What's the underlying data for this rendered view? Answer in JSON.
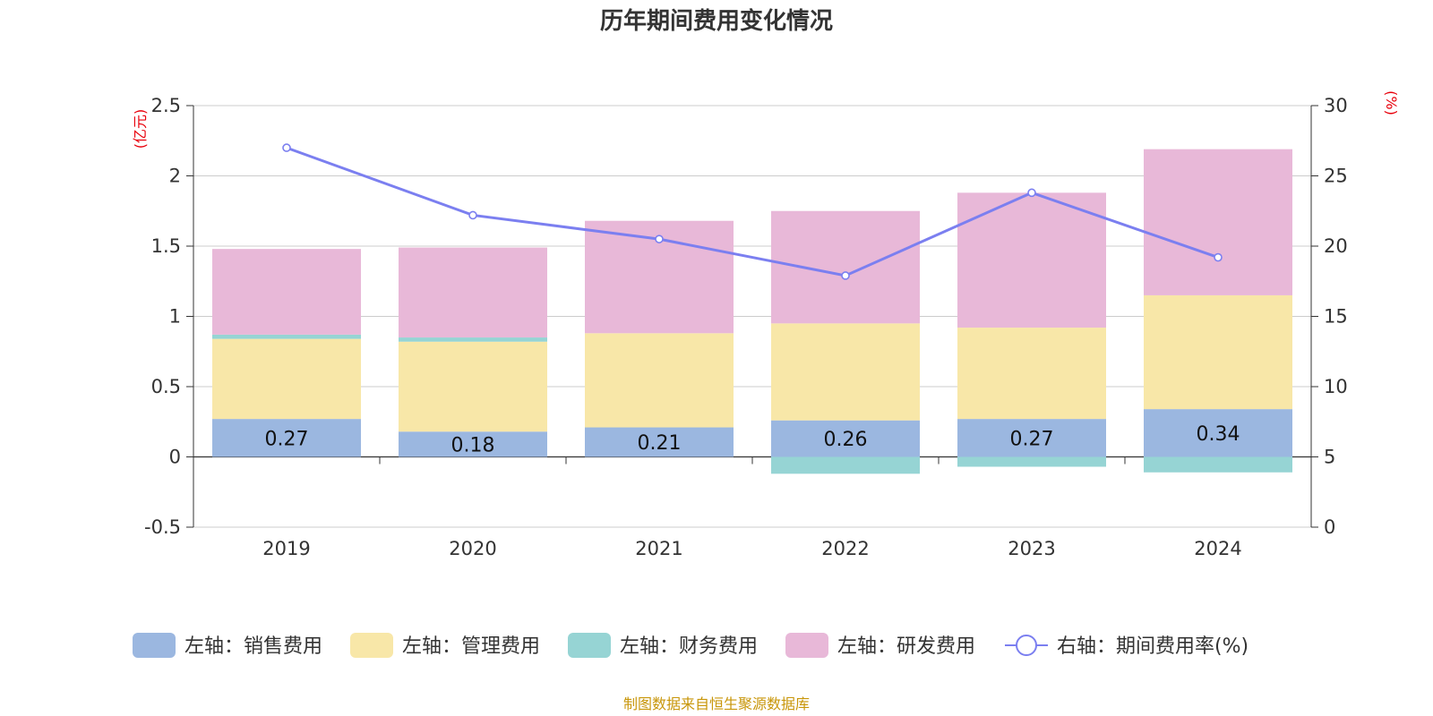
{
  "chart_data": {
    "type": "bar",
    "title": "历年期间费用变化情况",
    "categories": [
      "2019",
      "2020",
      "2021",
      "2022",
      "2023",
      "2024"
    ],
    "y_left": {
      "unit": "(亿元)",
      "ylim": [
        -0.5,
        2.5
      ],
      "ticks": [
        -0.5,
        0,
        0.5,
        1,
        1.5,
        2,
        2.5
      ],
      "tick_labels": [
        "-0.5",
        "0",
        "0.5",
        "1",
        "1.5",
        "2",
        "2.5"
      ]
    },
    "y_right": {
      "unit": "(%)",
      "ylim": [
        0,
        30
      ],
      "ticks": [
        0,
        5,
        10,
        15,
        20,
        25,
        30
      ],
      "tick_labels": [
        "0",
        "5",
        "10",
        "15",
        "20",
        "25",
        "30"
      ]
    },
    "series": [
      {
        "name": "左轴：销售费用",
        "kind": "bar",
        "color": "#9bb7e0",
        "values": [
          0.27,
          0.18,
          0.21,
          0.26,
          0.27,
          0.34
        ],
        "labels": [
          "0.27",
          "0.18",
          "0.21",
          "0.26",
          "0.27",
          "0.34"
        ]
      },
      {
        "name": "左轴：管理费用",
        "kind": "bar",
        "color": "#f8e7a8",
        "values": [
          0.57,
          0.64,
          0.67,
          0.69,
          0.65,
          0.81
        ]
      },
      {
        "name": "左轴：财务费用",
        "kind": "bar",
        "color": "#96d4d4",
        "values": [
          0.03,
          0.03,
          0.0,
          -0.12,
          -0.07,
          -0.11
        ]
      },
      {
        "name": "左轴：研发费用",
        "kind": "bar",
        "color": "#e8b8d8",
        "values": [
          0.61,
          0.64,
          0.8,
          0.8,
          0.96,
          1.04
        ]
      },
      {
        "name": "右轴：期间费用率(%)",
        "kind": "line",
        "axis": "right",
        "color": "#7b7ff0",
        "values": [
          27.0,
          22.2,
          20.5,
          17.9,
          23.8,
          19.2
        ]
      }
    ]
  },
  "source_text": "制图数据来自恒生聚源数据库",
  "source_color": "#c8960a"
}
